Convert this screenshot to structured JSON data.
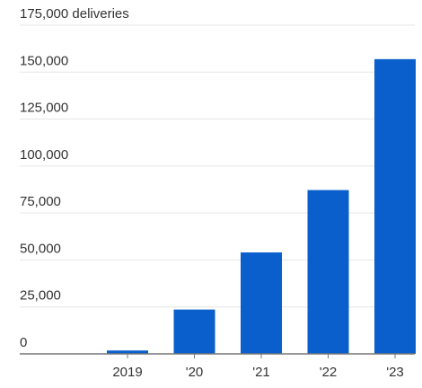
{
  "chart_data": {
    "type": "bar",
    "title": "",
    "xlabel": "",
    "ylabel": "",
    "categories": [
      "2019",
      "'20",
      "'21",
      "'22",
      "'23"
    ],
    "series": [
      {
        "values": [
          1800,
          23600,
          54000,
          87200,
          156900
        ],
        "color": "#0a5fcd"
      }
    ],
    "ylim": [
      0,
      175000
    ],
    "y_ticks": [
      0,
      25000,
      50000,
      75000,
      100000,
      125000,
      150000,
      175000
    ],
    "y_tick_labels": [
      "0",
      "25,000",
      "50,000",
      "75,000",
      "100,000",
      "125,000",
      "150,000",
      "175,000 deliveries"
    ],
    "grid": true,
    "legend": "none"
  }
}
